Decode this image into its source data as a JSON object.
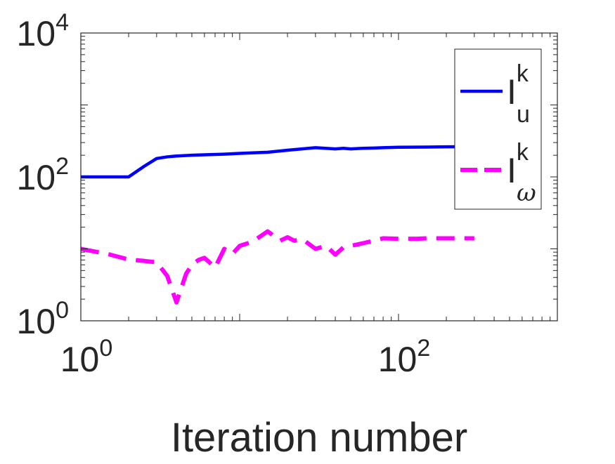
{
  "chart_data": {
    "type": "line",
    "xscale": "log",
    "yscale": "log",
    "xlim": [
      1,
      1000
    ],
    "ylim": [
      1,
      10000
    ],
    "xlabel": "Iteration number",
    "xticks": [
      {
        "value": 1,
        "base": "10",
        "exp": "0"
      },
      {
        "value": 100,
        "base": "10",
        "exp": "2"
      }
    ],
    "yticks": [
      {
        "value": 1,
        "base": "10",
        "exp": "0"
      },
      {
        "value": 100,
        "base": "10",
        "exp": "2"
      },
      {
        "value": 10000,
        "base": "10",
        "exp": "4"
      }
    ],
    "legend": {
      "location": "top-right"
    },
    "series": [
      {
        "name": "I_u^k",
        "label_main": "I",
        "label_sup": "k",
        "label_sub": "u",
        "color": "#0000ff",
        "style": "solid",
        "x": [
          1,
          1.5,
          2,
          2.5,
          3,
          3.5,
          4,
          5,
          6,
          8,
          10,
          15,
          20,
          30,
          40,
          45,
          50,
          60,
          70,
          80,
          100,
          150,
          200,
          300
        ],
        "y": [
          100,
          100,
          100,
          140,
          180,
          190,
          195,
          200,
          203,
          207,
          212,
          220,
          235,
          255,
          245,
          250,
          245,
          250,
          252,
          255,
          258,
          260,
          262,
          263
        ]
      },
      {
        "name": "I_ω^k",
        "label_main": "I",
        "label_sup": "k",
        "label_sub": "ω",
        "color": "#ff00ff",
        "style": "dashed",
        "x": [
          1,
          1.5,
          2,
          2.5,
          3,
          3.5,
          4,
          4.6,
          5,
          5.5,
          6,
          7,
          8,
          9,
          10,
          12,
          15,
          18,
          20,
          22,
          25,
          30,
          35,
          40,
          45,
          50,
          55,
          60,
          70,
          80,
          100,
          130,
          150,
          200,
          300
        ],
        "y": [
          10,
          8.4,
          7.1,
          6.8,
          6.5,
          4.2,
          1.8,
          4.5,
          6,
          7,
          7.5,
          5.5,
          10,
          8.5,
          11,
          12.5,
          17.5,
          13,
          14.5,
          13,
          13.5,
          10,
          11,
          8.3,
          10.5,
          11,
          11.5,
          12,
          13,
          14,
          13.8,
          13.8,
          14,
          14,
          14
        ]
      }
    ]
  }
}
